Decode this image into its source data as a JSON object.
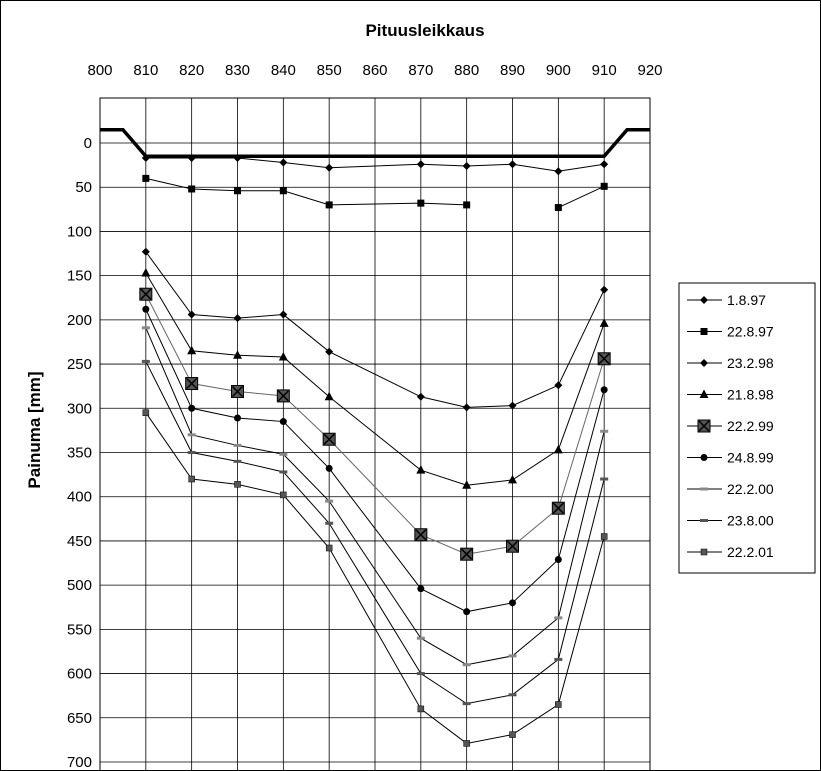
{
  "chart_data": {
    "type": "line",
    "title": "Pituusleikkaus",
    "xlabel": "",
    "ylabel": "Painuma [mm]",
    "x_ticks": [
      "800",
      "810",
      "820",
      "830",
      "840",
      "850",
      "860",
      "870",
      "880",
      "890",
      "900",
      "910",
      "920"
    ],
    "y_ticks": [
      "0",
      "50",
      "100",
      "150",
      "200",
      "250",
      "300",
      "350",
      "400",
      "450",
      "500",
      "550",
      "600",
      "650",
      "700"
    ],
    "xlim": [
      800,
      920
    ],
    "ylim": [
      -50,
      700
    ],
    "y_inverted": true,
    "grid": true,
    "legend_position": "right",
    "profile": {
      "x": [
        800,
        805,
        810,
        910,
        915,
        920
      ],
      "y": [
        -15,
        -15,
        15,
        15,
        -15,
        -15
      ]
    },
    "series": [
      {
        "name": "1.8.97",
        "marker": "diamond",
        "color": "#000000",
        "x": [
          810,
          820,
          830,
          840,
          850,
          870,
          880,
          890,
          900,
          910
        ],
        "y": [
          17,
          17,
          17,
          22,
          28,
          24,
          26,
          24,
          32,
          24
        ]
      },
      {
        "name": "22.8.97",
        "marker": "square",
        "color": "#000000",
        "x": [
          810,
          820,
          830,
          840,
          850,
          870,
          880,
          null,
          900,
          910
        ],
        "y": [
          40,
          52,
          54,
          54,
          70,
          68,
          70,
          null,
          73,
          49
        ]
      },
      {
        "name": "23.2.98",
        "marker": "diamond",
        "color": "#000000",
        "x": [
          810,
          820,
          830,
          840,
          850,
          870,
          880,
          890,
          900,
          910
        ],
        "y": [
          123,
          194,
          198,
          194,
          236,
          287,
          299,
          297,
          274,
          166
        ]
      },
      {
        "name": "21.8.98",
        "marker": "triangle",
        "color": "#000000",
        "x": [
          810,
          820,
          830,
          840,
          850,
          870,
          880,
          890,
          900,
          910
        ],
        "y": [
          147,
          235,
          240,
          242,
          287,
          370,
          387,
          381,
          347,
          204
        ]
      },
      {
        "name": "22.2.99",
        "marker": "x-square",
        "color": "#555555",
        "x": [
          810,
          820,
          830,
          840,
          850,
          870,
          880,
          890,
          900,
          910
        ],
        "y": [
          171,
          272,
          281,
          286,
          335,
          443,
          465,
          456,
          413,
          244
        ]
      },
      {
        "name": "24.8.99",
        "marker": "circle",
        "color": "#000000",
        "x": [
          810,
          820,
          830,
          840,
          850,
          870,
          880,
          890,
          900,
          910
        ],
        "y": [
          188,
          300,
          311,
          315,
          368,
          504,
          530,
          520,
          471,
          279
        ]
      },
      {
        "name": "22.2.00",
        "marker": "dash",
        "color": "#888888",
        "x": [
          810,
          820,
          830,
          840,
          850,
          870,
          880,
          890,
          900,
          910
        ],
        "y": [
          209,
          330,
          342,
          352,
          405,
          560,
          590,
          580,
          537,
          326
        ]
      },
      {
        "name": "23.8.00",
        "marker": "dash",
        "color": "#555555",
        "x": [
          810,
          820,
          830,
          840,
          850,
          870,
          880,
          890,
          900,
          910
        ],
        "y": [
          247,
          350,
          360,
          372,
          430,
          600,
          634,
          624,
          584,
          380
        ]
      },
      {
        "name": "22.2.01",
        "marker": "small-square",
        "color": "#555555",
        "x": [
          810,
          820,
          830,
          840,
          850,
          870,
          880,
          890,
          900,
          910
        ],
        "y": [
          305,
          380,
          386,
          398,
          458,
          640,
          679,
          669,
          635,
          445
        ]
      }
    ]
  }
}
